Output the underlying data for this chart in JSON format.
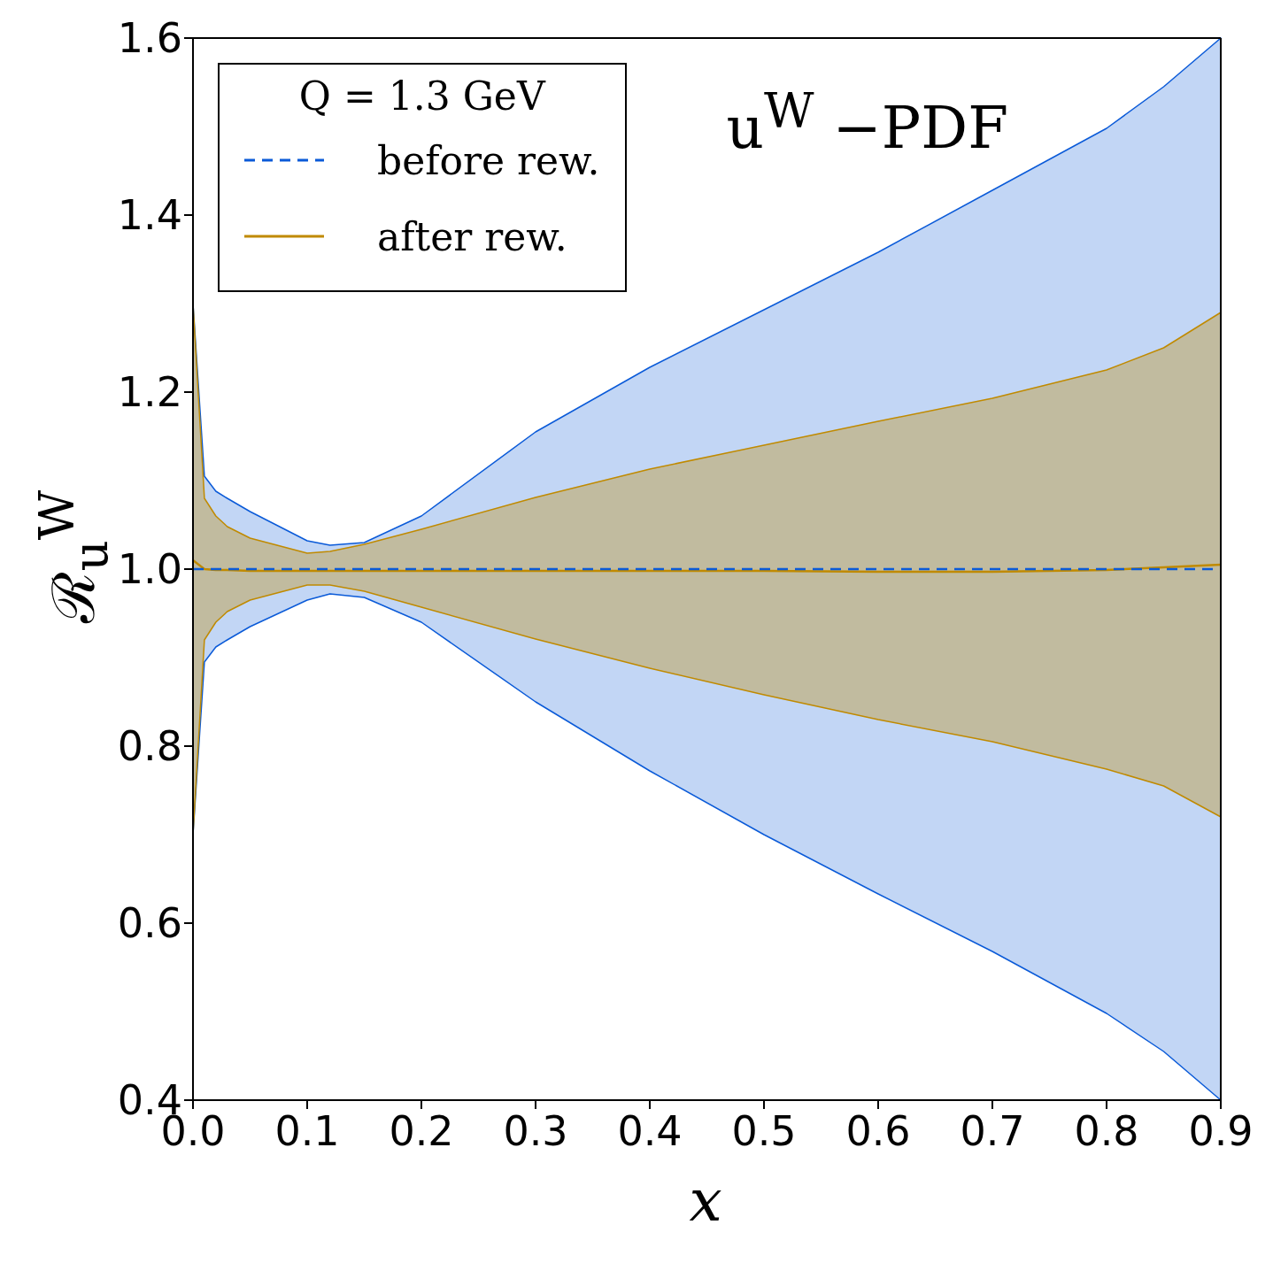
{
  "chart_data": {
    "type": "line",
    "title": "u$^{W}$ −PDF",
    "xlabel": "x",
    "ylabel": "ℛ$_{u}$$^{W}$",
    "legend_title": "Q = 1.3 GeV",
    "x": [
      0,
      0.01,
      0.02,
      0.03,
      0.05,
      0.1,
      0.12,
      0.15,
      0.2,
      0.3,
      0.4,
      0.5,
      0.6,
      0.7,
      0.8,
      0.85,
      0.9
    ],
    "series": [
      {
        "name": "before rew.",
        "color": "#0a5ad8",
        "line_style": "dashed",
        "values": [
          1.0,
          1.0,
          1.0,
          1.0,
          1.0,
          1.0,
          1.0,
          1.0,
          1.0,
          1.0,
          1.0,
          1.0,
          1.0,
          1.0,
          1.0,
          1.0,
          1.0
        ],
        "lower": [
          0.7,
          0.895,
          0.912,
          0.92,
          0.935,
          0.965,
          0.972,
          0.968,
          0.94,
          0.85,
          0.772,
          0.7,
          0.633,
          0.568,
          0.498,
          0.455,
          0.4
        ],
        "upper": [
          1.3,
          1.105,
          1.088,
          1.08,
          1.065,
          1.032,
          1.027,
          1.03,
          1.06,
          1.155,
          1.228,
          1.293,
          1.358,
          1.428,
          1.498,
          1.545,
          1.6
        ]
      },
      {
        "name": "after rew.",
        "color": "#c08a00",
        "line_style": "solid",
        "values": [
          1.01,
          1.0,
          0.999,
          0.999,
          0.998,
          0.998,
          0.998,
          0.998,
          0.998,
          0.998,
          0.998,
          0.998,
          0.997,
          0.997,
          0.999,
          1.002,
          1.005
        ],
        "lower": [
          0.7,
          0.92,
          0.94,
          0.952,
          0.965,
          0.982,
          0.982,
          0.975,
          0.957,
          0.921,
          0.888,
          0.858,
          0.83,
          0.805,
          0.774,
          0.755,
          0.72
        ],
        "upper": [
          1.3,
          1.08,
          1.06,
          1.048,
          1.035,
          1.018,
          1.02,
          1.028,
          1.045,
          1.081,
          1.113,
          1.14,
          1.167,
          1.193,
          1.225,
          1.25,
          1.29
        ]
      }
    ],
    "xlim": [
      0,
      0.9
    ],
    "ylim": [
      0.4,
      1.6
    ],
    "xticks": [
      {
        "value": 0,
        "label": "0.0"
      },
      0.1,
      0.2,
      0.3,
      0.4,
      0.5,
      0.6,
      0.7,
      0.8,
      0.9
    ],
    "yticks": [
      0.4,
      0.6,
      0.8,
      {
        "value": 1,
        "label": "1.0"
      },
      1.2,
      1.4,
      1.6
    ],
    "legend": "top left",
    "marker": "none"
  }
}
